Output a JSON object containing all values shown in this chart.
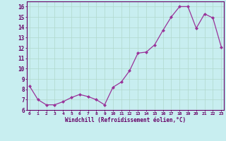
{
  "x_vals": [
    0,
    1,
    2,
    3,
    4,
    5,
    6,
    7,
    8,
    9,
    10,
    11,
    12,
    13,
    14,
    15,
    16,
    17,
    18,
    19,
    20,
    21,
    22,
    23
  ],
  "y_vals": [
    8.3,
    7.0,
    6.5,
    6.5,
    6.8,
    7.2,
    7.5,
    7.3,
    7.0,
    6.5,
    8.2,
    8.7,
    9.8,
    11.5,
    11.6,
    12.3,
    13.7,
    15.0,
    16.0,
    16.0,
    13.9,
    15.3,
    14.9,
    12.1
  ],
  "line_color": "#993399",
  "marker_color": "#993399",
  "bg_color": "#c8eef0",
  "grid_color": "#b0d8cc",
  "xlabel": "Windchill (Refroidissement éolien,°C)",
  "ylim": [
    6,
    16.5
  ],
  "yticks": [
    6,
    7,
    8,
    9,
    10,
    11,
    12,
    13,
    14,
    15,
    16
  ],
  "xticks": [
    0,
    1,
    2,
    3,
    4,
    5,
    6,
    7,
    8,
    9,
    10,
    11,
    12,
    13,
    14,
    15,
    16,
    17,
    18,
    19,
    20,
    21,
    22,
    23
  ],
  "axis_color": "#660066",
  "tick_color": "#660066",
  "spine_color": "#660066"
}
